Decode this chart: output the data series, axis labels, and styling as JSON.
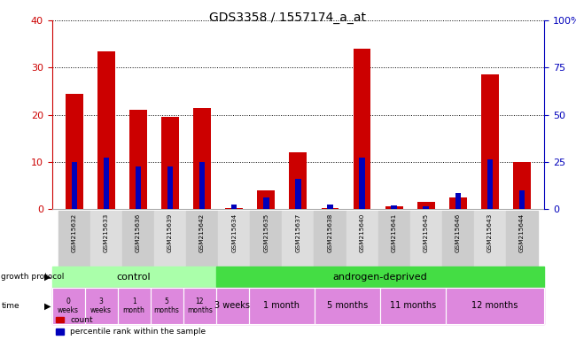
{
  "title": "GDS3358 / 1557174_a_at",
  "samples": [
    "GSM215632",
    "GSM215633",
    "GSM215636",
    "GSM215639",
    "GSM215642",
    "GSM215634",
    "GSM215635",
    "GSM215637",
    "GSM215638",
    "GSM215640",
    "GSM215641",
    "GSM215645",
    "GSM215646",
    "GSM215643",
    "GSM215644"
  ],
  "red_values": [
    24.5,
    33.5,
    21.0,
    19.5,
    21.5,
    0.2,
    4.0,
    12.0,
    0.2,
    34.0,
    0.5,
    1.5,
    2.5,
    28.5,
    10.0
  ],
  "blue_values": [
    10.0,
    11.0,
    9.0,
    9.0,
    10.0,
    1.0,
    2.5,
    6.5,
    1.0,
    11.0,
    0.8,
    0.5,
    3.5,
    10.5,
    4.0
  ],
  "ylim_left": [
    0,
    40
  ],
  "ylim_right": [
    0,
    100
  ],
  "yticks_left": [
    0,
    10,
    20,
    30,
    40
  ],
  "yticks_right": [
    0,
    25,
    50,
    75,
    100
  ],
  "ytick_labels_right": [
    "0",
    "25",
    "50",
    "75",
    "100%"
  ],
  "bar_width": 0.55,
  "blue_bar_width": 0.18,
  "red_color": "#CC0000",
  "blue_color": "#0000BB",
  "tick_color_left": "#CC0000",
  "tick_color_right": "#0000BB",
  "control_color": "#AAFFAA",
  "androgen_color": "#44DD44",
  "time_color_ctrl": "#DD88DD",
  "time_color_and": "#DD88DD",
  "label_bg_even": "#CCCCCC",
  "label_bg_odd": "#DDDDDD",
  "time_ctrl_groups": [
    {
      "samples": [
        0
      ],
      "label": "0\nweeks"
    },
    {
      "samples": [
        1
      ],
      "label": "3\nweeks"
    },
    {
      "samples": [
        2
      ],
      "label": "1\nmonth"
    },
    {
      "samples": [
        3
      ],
      "label": "5\nmonths"
    },
    {
      "samples": [
        4
      ],
      "label": "12\nmonths"
    }
  ],
  "time_and_groups": [
    {
      "samples": [
        5
      ],
      "label": "3 weeks"
    },
    {
      "samples": [
        6,
        7
      ],
      "label": "1 month"
    },
    {
      "samples": [
        8,
        9
      ],
      "label": "5 months"
    },
    {
      "samples": [
        10,
        11
      ],
      "label": "11 months"
    },
    {
      "samples": [
        12,
        13,
        14
      ],
      "label": "12 months"
    }
  ]
}
